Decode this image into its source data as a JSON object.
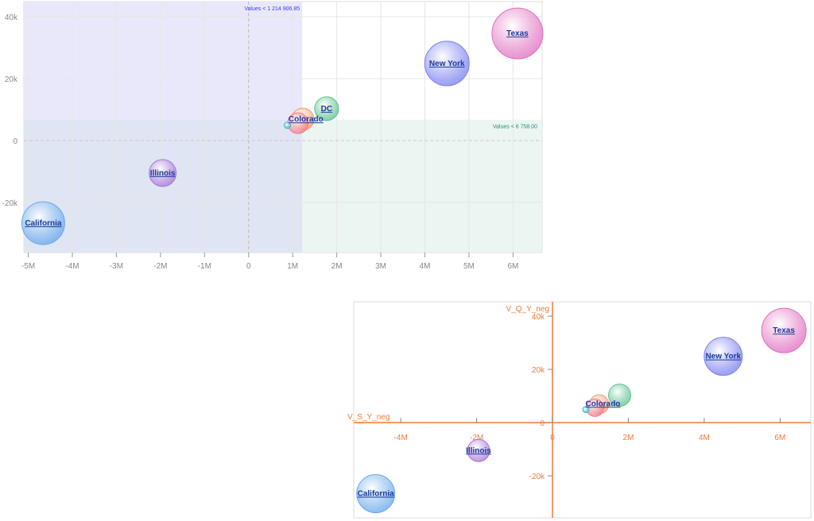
{
  "chart_data": [
    {
      "type": "scatter",
      "subtype": "bubble",
      "xlim": [
        -5.1,
        6.66
      ],
      "ylim": [
        -36.2,
        44.9
      ],
      "x_unit": "M",
      "y_unit": "k",
      "xticks": [
        "-5M",
        "-4M",
        "-3M",
        "-2M",
        "-1M",
        "0",
        "1M",
        "2M",
        "3M",
        "4M",
        "5M",
        "6M"
      ],
      "xtick_values": [
        -5,
        -4,
        -3,
        -2,
        -1,
        0,
        1,
        2,
        3,
        4,
        5,
        6
      ],
      "yticks": [
        "40k",
        "20k",
        "0",
        "-20k"
      ],
      "ytick_values": [
        40,
        20,
        0,
        -20
      ],
      "grid": true,
      "bands": [
        {
          "axis": "x",
          "below": 1.21490685,
          "label": "Values < 1 214 906.85",
          "color": "#e9e8fb",
          "label_color": "#3a3aff"
        },
        {
          "axis": "y",
          "below": 6.758,
          "label": "Values < 6 758.00",
          "color": "#e8f3f0",
          "label_color": "#2a8a7a"
        }
      ],
      "series": [
        {
          "name": "Texas",
          "x": 6.1,
          "y": 34.6,
          "size": 32,
          "color": "#e070c0",
          "label": "Texas"
        },
        {
          "name": "New York",
          "x": 4.5,
          "y": 24.9,
          "size": 28,
          "color": "#7a80f0",
          "label": "New York"
        },
        {
          "name": "DC",
          "x": 1.77,
          "y": 10.3,
          "size": 15,
          "color": "#5ec08e",
          "label": "DC"
        },
        {
          "name": "Colorado",
          "x": 1.23,
          "y": 6.9,
          "size": 14,
          "color": "#f5a070",
          "label": ""
        },
        {
          "name": "Colorado2",
          "x": 1.12,
          "y": 5.6,
          "size": 13,
          "color": "#f07a8a",
          "label": "Colorado"
        },
        {
          "name": "small",
          "x": 0.88,
          "y": 4.9,
          "size": 4,
          "color": "#40b8d0",
          "label": ""
        },
        {
          "name": "Illinois",
          "x": -1.95,
          "y": -10.5,
          "size": 17,
          "color": "#a878d8",
          "label": "Illinois"
        },
        {
          "name": "California",
          "x": -4.66,
          "y": -26.7,
          "size": 27,
          "color": "#6aa8ec",
          "label": "California"
        }
      ]
    },
    {
      "type": "scatter",
      "subtype": "bubble",
      "xlim": [
        -5.24,
        6.81
      ],
      "ylim": [
        -35.8,
        45.4
      ],
      "xlabel": "V_S_Y_neg",
      "ylabel": "V_Q_Y_neg",
      "axis_color": "#f07a3a",
      "xticks": [
        "-4M",
        "-2M",
        "0",
        "2M",
        "4M",
        "6M"
      ],
      "xtick_values": [
        -4,
        -2,
        0,
        2,
        4,
        6
      ],
      "yticks": [
        "40k",
        "20k",
        "0",
        "-20k"
      ],
      "ytick_values": [
        40,
        20,
        0,
        -20
      ],
      "grid": false,
      "series": [
        {
          "name": "Texas",
          "x": 6.1,
          "y": 34.6,
          "size": 28,
          "color": "#e070c0",
          "label": "Texas"
        },
        {
          "name": "New York",
          "x": 4.5,
          "y": 24.9,
          "size": 24,
          "color": "#7a80f0",
          "label": "New York"
        },
        {
          "name": "DC",
          "x": 1.77,
          "y": 10.3,
          "size": 14,
          "color": "#5ec08e",
          "label": ""
        },
        {
          "name": "Colorado",
          "x": 1.23,
          "y": 6.9,
          "size": 12,
          "color": "#f5a070",
          "label": ""
        },
        {
          "name": "Colorado2",
          "x": 1.12,
          "y": 5.6,
          "size": 11,
          "color": "#f07a8a",
          "label": "Colorado"
        },
        {
          "name": "small",
          "x": 0.88,
          "y": 4.9,
          "size": 4,
          "color": "#40b8d0",
          "label": ""
        },
        {
          "name": "Illinois",
          "x": -1.95,
          "y": -10.5,
          "size": 14,
          "color": "#a878d8",
          "label": "Illinois"
        },
        {
          "name": "California",
          "x": -4.66,
          "y": -26.7,
          "size": 24,
          "color": "#6aa8ec",
          "label": "California"
        }
      ]
    }
  ]
}
